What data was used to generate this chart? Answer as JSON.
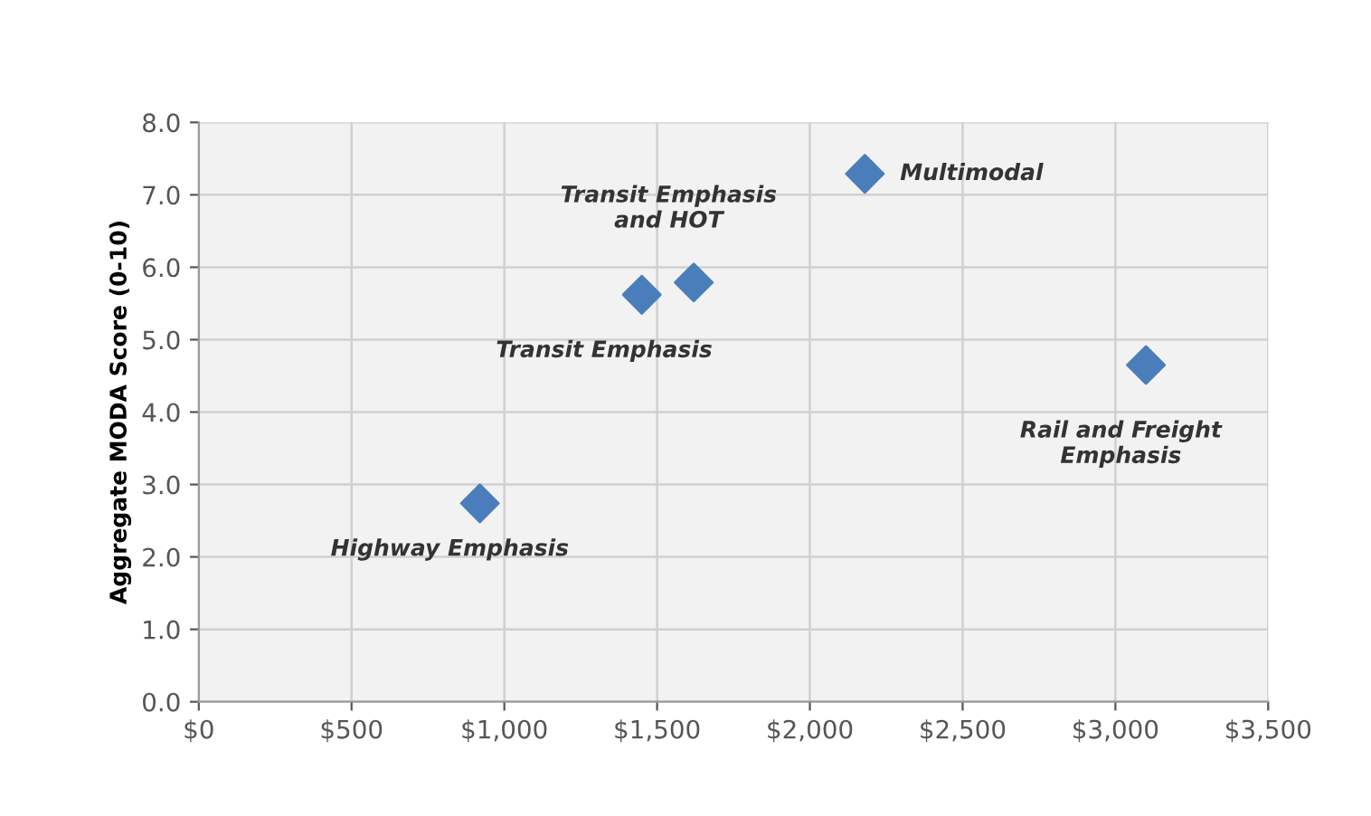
{
  "chart_data": {
    "type": "scatter",
    "ylabel": "Aggregate MODA Score (0-10)",
    "x": [
      920,
      1450,
      1620,
      2180,
      3100
    ],
    "values": [
      2.74,
      5.62,
      5.79,
      7.29,
      4.65
    ],
    "color": "#4a7ebb",
    "marker": "diamond",
    "grid": true,
    "xlim": [
      0,
      3500
    ],
    "xticks": [
      {
        "value": 0,
        "label": "$0"
      },
      {
        "value": 500,
        "label": "$500"
      },
      {
        "value": 1000,
        "label": "$1,000"
      },
      {
        "value": 1500,
        "label": "$1,500"
      },
      {
        "value": 2000,
        "label": "$2,000"
      },
      {
        "value": 2500,
        "label": "$2,500"
      },
      {
        "value": 3000,
        "label": "$3,000"
      },
      {
        "value": 3500,
        "label": "$3,500"
      }
    ],
    "ylim": [
      0,
      8
    ],
    "yticks": [
      {
        "value": 0,
        "label": "0.0"
      },
      {
        "value": 1,
        "label": "1.0"
      },
      {
        "value": 2,
        "label": "2.0"
      },
      {
        "value": 3,
        "label": "3.0"
      },
      {
        "value": 4,
        "label": "4.0"
      },
      {
        "value": 5,
        "label": "5.0"
      },
      {
        "value": 6,
        "label": "6.0"
      },
      {
        "value": 7,
        "label": "7.0"
      },
      {
        "value": 8,
        "label": "8.0"
      }
    ],
    "annotations": [
      {
        "text": "Highway Emphasis",
        "x": 920,
        "y": 2.74
      },
      {
        "text": "Transit Emphasis",
        "x": 1450,
        "y": 5.62
      },
      {
        "text": "Transit Emphasis\nand HOT",
        "x": 1620,
        "y": 5.79
      },
      {
        "text": "Multimodal",
        "x": 2180,
        "y": 7.29
      },
      {
        "text": "Rail and Freight\nEmphasis",
        "x": 3100,
        "y": 4.65
      }
    ]
  }
}
